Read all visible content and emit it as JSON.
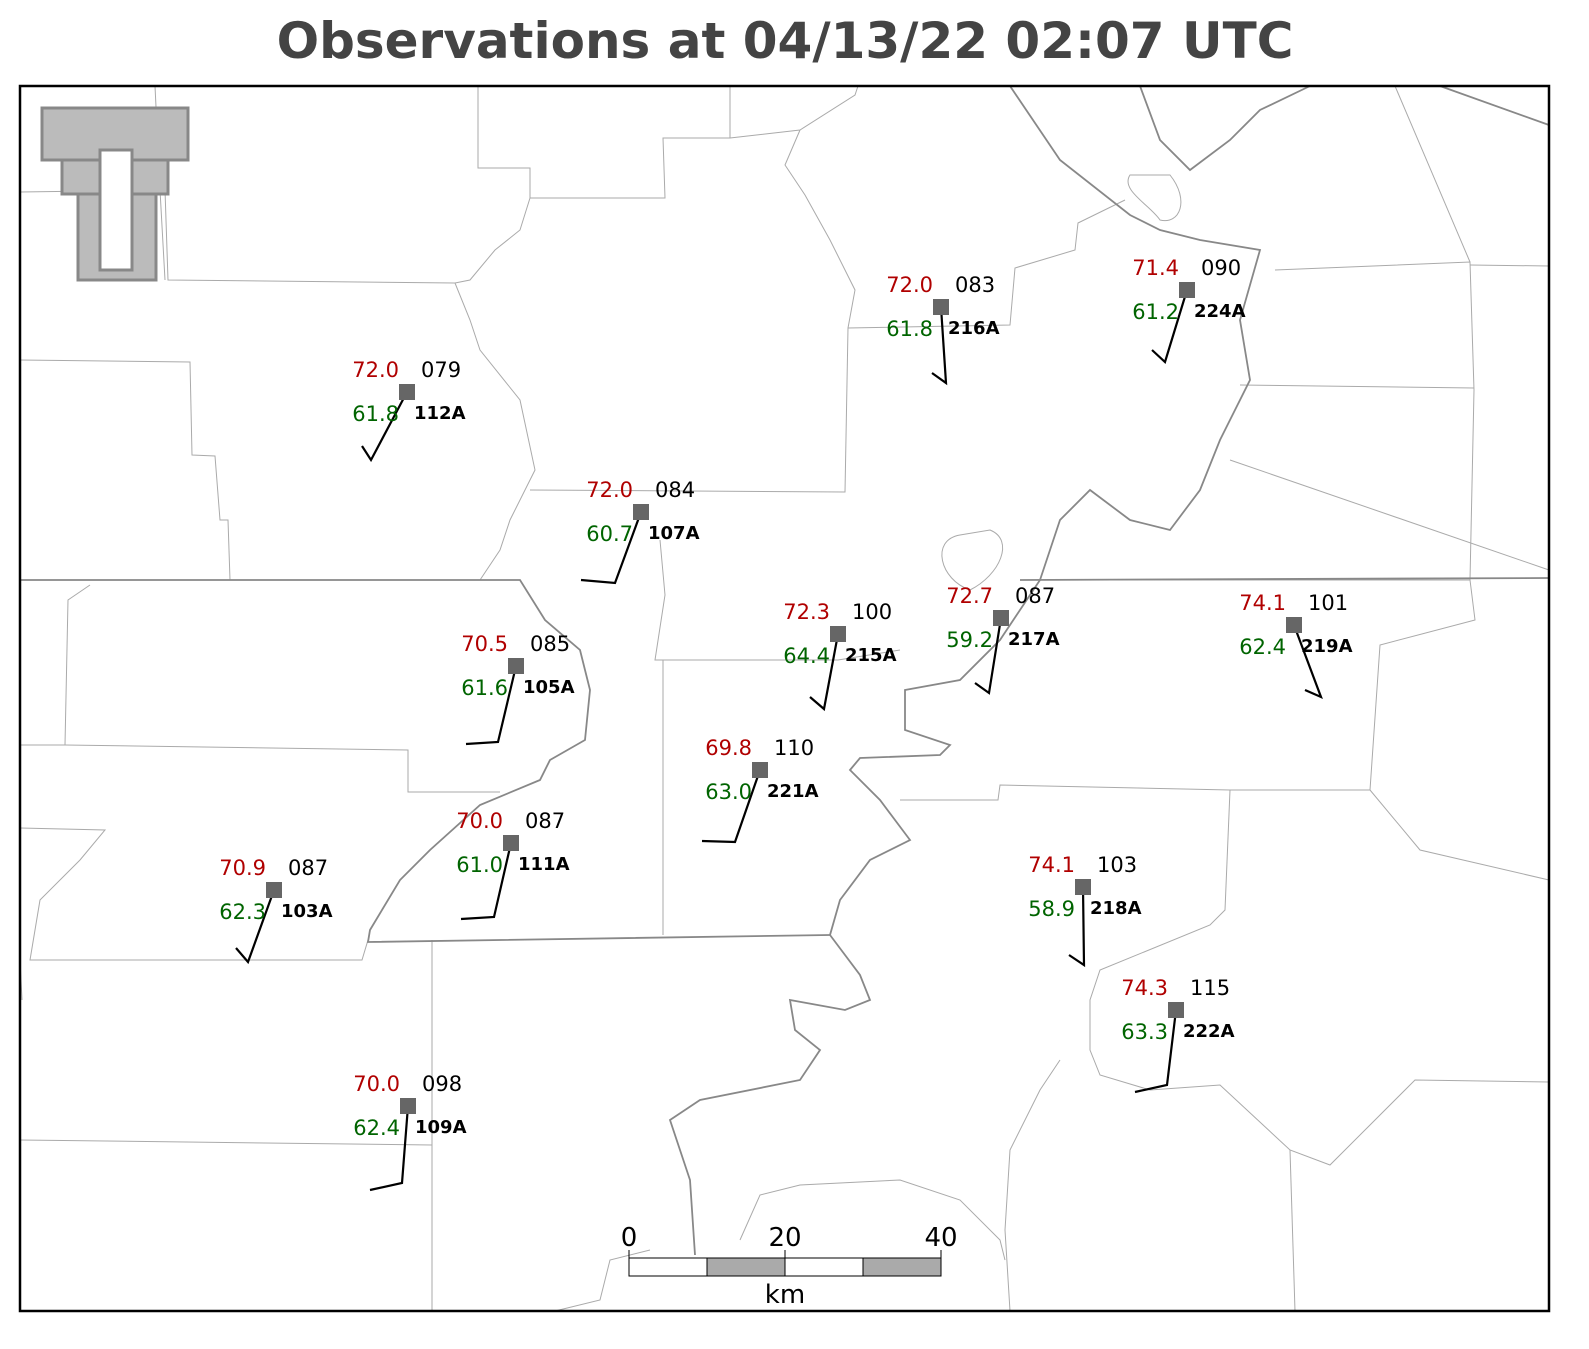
{
  "title": "Observations at 04/13/22 02:07 UTC",
  "stations": [
    {
      "id": "112A",
      "temperature": "72.0",
      "dewpoint": "61.8",
      "pressure": "079"
    },
    {
      "id": "107A",
      "temperature": "72.0",
      "dewpoint": "60.7",
      "pressure": "084"
    },
    {
      "id": "216A",
      "temperature": "72.0",
      "dewpoint": "61.8",
      "pressure": "083"
    },
    {
      "id": "224A",
      "temperature": "71.4",
      "dewpoint": "61.2",
      "pressure": "090"
    },
    {
      "id": "105A",
      "temperature": "70.5",
      "dewpoint": "61.6",
      "pressure": "085"
    },
    {
      "id": "215A",
      "temperature": "72.3",
      "dewpoint": "64.4",
      "pressure": "100"
    },
    {
      "id": "217A",
      "temperature": "72.7",
      "dewpoint": "59.2",
      "pressure": "087"
    },
    {
      "id": "219A",
      "temperature": "74.1",
      "dewpoint": "62.4",
      "pressure": "101"
    },
    {
      "id": "221A",
      "temperature": "69.8",
      "dewpoint": "63.0",
      "pressure": "110"
    },
    {
      "id": "111A",
      "temperature": "70.0",
      "dewpoint": "61.0",
      "pressure": "087"
    },
    {
      "id": "103A",
      "temperature": "70.9",
      "dewpoint": "62.3",
      "pressure": "087"
    },
    {
      "id": "218A",
      "temperature": "74.1",
      "dewpoint": "58.9",
      "pressure": "103"
    },
    {
      "id": "222A",
      "temperature": "74.3",
      "dewpoint": "63.3",
      "pressure": "115"
    },
    {
      "id": "109A",
      "temperature": "70.0",
      "dewpoint": "62.4",
      "pressure": "098"
    }
  ],
  "scale_bar": {
    "ticks": [
      "0",
      "20",
      "40"
    ],
    "unit": "km"
  }
}
